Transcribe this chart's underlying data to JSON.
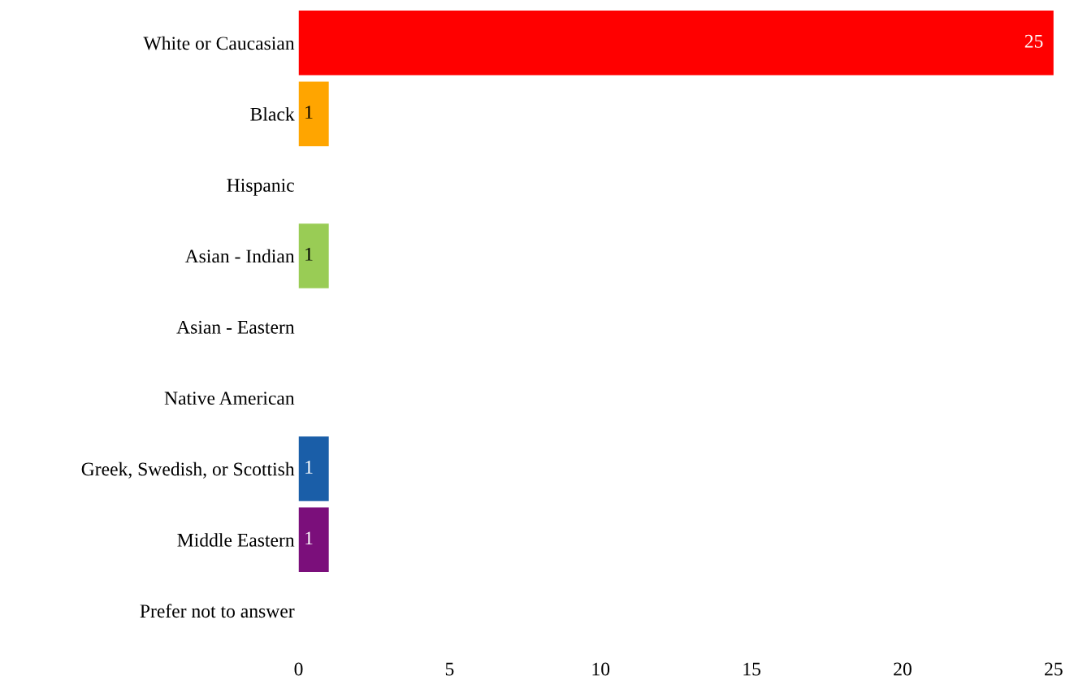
{
  "chart_data": {
    "type": "bar",
    "orientation": "horizontal",
    "categories": [
      "White or Caucasian",
      "Black",
      "Hispanic",
      "Asian - Indian",
      "Asian - Eastern",
      "Native American",
      "Greek, Swedish, or Scottish",
      "Middle Eastern",
      "Prefer not to answer"
    ],
    "values": [
      25,
      1,
      0,
      1,
      0,
      0,
      1,
      1,
      0
    ],
    "colors": [
      "#ff0000",
      "#ffa500",
      null,
      "#99cc55",
      null,
      null,
      "#1a5ea8",
      "#7b0f7b",
      null
    ],
    "value_labels": [
      "25",
      "1",
      null,
      "1",
      null,
      null,
      "1",
      "1",
      null
    ],
    "xlim": [
      0,
      25
    ],
    "xticks": [
      0,
      5,
      10,
      15,
      20,
      25
    ],
    "grid": false,
    "legend": false
  }
}
